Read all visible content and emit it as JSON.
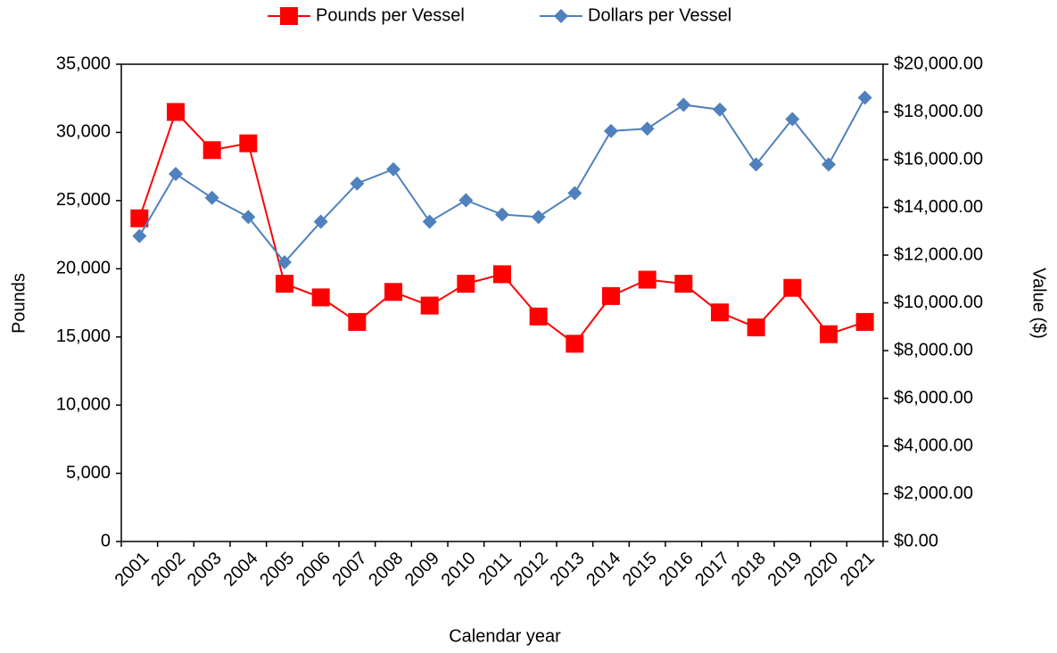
{
  "chart_data": {
    "type": "line",
    "x_label": "Calendar year",
    "y_label": "Pounds",
    "y2_label": "Value ($)",
    "categories": [
      "2001",
      "2002",
      "2003",
      "2004",
      "2005",
      "2006",
      "2007",
      "2008",
      "2009",
      "2010",
      "2011",
      "2012",
      "2013",
      "2014",
      "2015",
      "2016",
      "2017",
      "2018",
      "2019",
      "2020",
      "2021"
    ],
    "series": [
      {
        "name": "Pounds per Vessel",
        "color": "#ff0000",
        "marker": "square",
        "values": [
          23700,
          31500,
          28700,
          29200,
          18900,
          17900,
          16100,
          18300,
          17300,
          18900,
          19600,
          16500,
          14500,
          18000,
          19200,
          18900,
          16800,
          15700,
          18600,
          15200,
          16100
        ]
      },
      {
        "name": "Dollars per Vessel",
        "color": "#4f81bd",
        "marker": "diamond",
        "axis": "y2",
        "values": [
          12800,
          15400,
          14400,
          13600,
          11700,
          13400,
          15000,
          15600,
          13400,
          14300,
          13700,
          13600,
          14600,
          17200,
          17300,
          18300,
          18100,
          15800,
          17700,
          15800,
          18600
        ]
      }
    ],
    "ylim": [
      0,
      35000
    ],
    "yticks": [
      0,
      {
        "value": 5000,
        "label": "5,000"
      },
      {
        "value": 10000,
        "label": "10,000"
      },
      {
        "value": 15000,
        "label": "15,000"
      },
      {
        "value": 20000,
        "label": "20,000"
      },
      {
        "value": 25000,
        "label": "25,000"
      },
      {
        "value": 30000,
        "label": "30,000"
      },
      {
        "value": 35000,
        "label": "35,000"
      }
    ],
    "y2lim": [
      0,
      20000
    ],
    "y2ticks": [
      {
        "value": 0,
        "label": "$0.00"
      },
      {
        "value": 2000,
        "label": "$2,000.00"
      },
      {
        "value": 4000,
        "label": "$4,000.00"
      },
      {
        "value": 6000,
        "label": "$6,000.00"
      },
      {
        "value": 8000,
        "label": "$8,000.00"
      },
      {
        "value": 10000,
        "label": "$10,000.00"
      },
      {
        "value": 12000,
        "label": "$12,000.00"
      },
      {
        "value": 14000,
        "label": "$14,000.00"
      },
      {
        "value": 16000,
        "label": "$16,000.00"
      },
      {
        "value": 18000,
        "label": "$18,000.00"
      },
      {
        "value": 20000,
        "label": "$20,000.00"
      }
    ],
    "grid": false,
    "legend": "top"
  }
}
